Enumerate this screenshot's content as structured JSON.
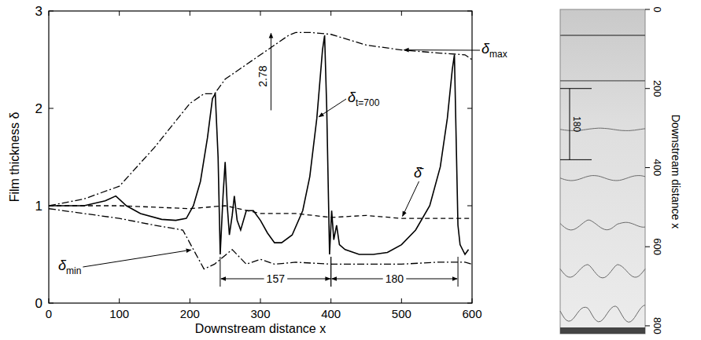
{
  "chart_data": [
    {
      "type": "line",
      "xlabel": "Downstream distance x",
      "ylabel": "Film thickness δ",
      "xlim": [
        0,
        600
      ],
      "xticks": [
        0,
        100,
        200,
        300,
        400,
        500,
        600
      ],
      "ylim": [
        0,
        3
      ],
      "yticks": [
        0,
        1,
        2,
        3
      ],
      "grid": false,
      "series": [
        {
          "name": "δmax",
          "color": "#000000",
          "line_style": "dash-dot",
          "x": [
            0,
            50,
            100,
            150,
            200,
            220,
            235,
            250,
            280,
            310,
            340,
            350,
            370,
            400,
            450,
            500,
            550,
            590,
            600
          ],
          "values": [
            1.0,
            1.07,
            1.2,
            1.6,
            2.05,
            2.15,
            2.15,
            2.3,
            2.45,
            2.6,
            2.75,
            2.78,
            2.78,
            2.76,
            2.65,
            2.6,
            2.57,
            2.55,
            2.5
          ]
        },
        {
          "name": "δt=700",
          "color": "#000000",
          "line_style": "solid",
          "x": [
            0,
            20,
            50,
            80,
            95,
            110,
            130,
            160,
            180,
            195,
            205,
            215,
            225,
            232,
            236,
            240,
            243,
            247,
            250,
            253,
            256,
            260,
            263,
            267,
            272,
            280,
            290,
            300,
            310,
            320,
            330,
            345,
            360,
            370,
            380,
            388,
            391,
            394,
            398,
            401,
            404,
            408,
            412,
            420,
            440,
            460,
            480,
            500,
            520,
            540,
            555,
            565,
            572,
            575,
            578,
            580,
            583,
            590,
            595
          ],
          "values": [
            1.0,
            1.0,
            1.0,
            1.05,
            1.1,
            1.0,
            0.92,
            0.86,
            0.85,
            0.87,
            1.0,
            1.25,
            1.7,
            2.1,
            2.15,
            1.5,
            0.5,
            1.1,
            1.45,
            1.0,
            0.7,
            0.9,
            1.1,
            0.85,
            0.75,
            0.95,
            0.95,
            0.85,
            0.72,
            0.62,
            0.62,
            0.7,
            0.95,
            1.3,
            1.9,
            2.6,
            2.75,
            2.0,
            0.5,
            0.95,
            0.65,
            0.8,
            0.6,
            0.55,
            0.5,
            0.5,
            0.52,
            0.6,
            0.75,
            1.0,
            1.4,
            1.9,
            2.4,
            2.55,
            1.5,
            0.8,
            0.6,
            0.5,
            0.55
          ]
        },
        {
          "name": "δ̄",
          "color": "#000000",
          "line_style": "dashed",
          "x": [
            0,
            100,
            200,
            250,
            300,
            350,
            400,
            450,
            500,
            550,
            600
          ],
          "values": [
            1.0,
            1.0,
            0.97,
            1.0,
            0.92,
            0.92,
            0.88,
            0.9,
            0.87,
            0.87,
            0.87
          ]
        },
        {
          "name": "δmin",
          "color": "#000000",
          "line_style": "dash-dot",
          "x": [
            0,
            50,
            100,
            150,
            190,
            205,
            220,
            235,
            260,
            280,
            300,
            320,
            350,
            400,
            450,
            500,
            550,
            590,
            600
          ],
          "values": [
            0.97,
            0.92,
            0.87,
            0.8,
            0.75,
            0.55,
            0.35,
            0.4,
            0.55,
            0.4,
            0.45,
            0.4,
            0.42,
            0.4,
            0.4,
            0.4,
            0.42,
            0.42,
            0.4
          ]
        }
      ],
      "annotations": [
        {
          "label": "2.78",
          "value": 2.78,
          "x": 315
        },
        {
          "label": "157",
          "from": 243,
          "to": 400,
          "y": 0.25
        },
        {
          "label": "180",
          "from": 400,
          "to": 580,
          "y": 0.25
        }
      ]
    },
    {
      "type": "image",
      "ylabel": "Downstream distance x",
      "ylim": [
        0,
        820
      ],
      "yticks": [
        0,
        200,
        400,
        600,
        800
      ],
      "annotations": [
        {
          "label": "180",
          "from": 200,
          "to": 380
        }
      ]
    }
  ]
}
